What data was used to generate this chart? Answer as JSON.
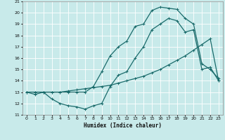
{
  "xlabel": "Humidex (Indice chaleur)",
  "bg_color": "#c8eaea",
  "grid_color": "#ffffff",
  "line_color": "#1a6b6b",
  "xlim": [
    -0.5,
    23.5
  ],
  "ylim": [
    11,
    21
  ],
  "xticks": [
    0,
    1,
    2,
    3,
    4,
    5,
    6,
    7,
    8,
    9,
    10,
    11,
    12,
    13,
    14,
    15,
    16,
    17,
    18,
    19,
    20,
    21,
    22,
    23
  ],
  "yticks": [
    11,
    12,
    13,
    14,
    15,
    16,
    17,
    18,
    19,
    20,
    21
  ],
  "line1_x": [
    0,
    1,
    2,
    3,
    4,
    5,
    6,
    7,
    8,
    9,
    10,
    11,
    12,
    13,
    14,
    15,
    16,
    17,
    18,
    19,
    20,
    21,
    22,
    23
  ],
  "line1_y": [
    13,
    12.8,
    13,
    12.4,
    12.0,
    11.8,
    11.7,
    11.5,
    11.8,
    12.0,
    13.5,
    14.5,
    14.8,
    16.0,
    17.0,
    18.5,
    19.0,
    19.5,
    19.3,
    18.3,
    18.5,
    15.0,
    15.2,
    14.0
  ],
  "line2_x": [
    0,
    1,
    2,
    3,
    4,
    5,
    6,
    7,
    8,
    9,
    10,
    11,
    12,
    13,
    14,
    15,
    16,
    17,
    18,
    19,
    20,
    21,
    22,
    23
  ],
  "line2_y": [
    13,
    13,
    13,
    13,
    13,
    13.1,
    13.2,
    13.3,
    13.4,
    13.5,
    13.6,
    13.8,
    14.0,
    14.2,
    14.4,
    14.7,
    15.0,
    15.4,
    15.8,
    16.2,
    16.7,
    17.2,
    17.7,
    14.0
  ],
  "line3_x": [
    0,
    1,
    2,
    3,
    4,
    5,
    6,
    7,
    8,
    9,
    10,
    11,
    12,
    13,
    14,
    15,
    16,
    17,
    18,
    19,
    20,
    21,
    22,
    23
  ],
  "line3_y": [
    13,
    13,
    13,
    13,
    13,
    13,
    13,
    13,
    13.5,
    14.8,
    16.2,
    17.0,
    17.5,
    18.8,
    19.0,
    20.2,
    20.5,
    20.4,
    20.3,
    19.5,
    19.0,
    15.5,
    15.0,
    14.2
  ]
}
